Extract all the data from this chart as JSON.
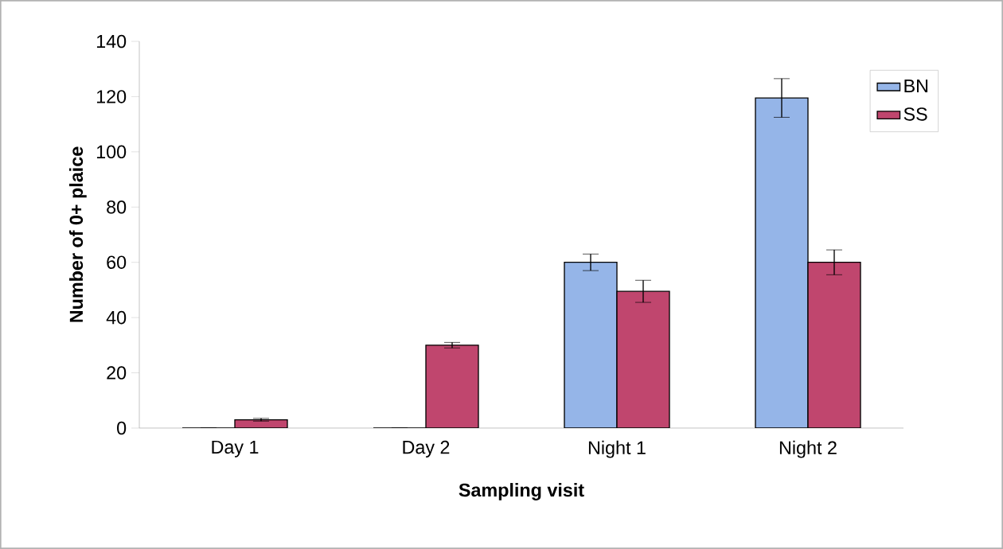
{
  "chart_data": {
    "type": "bar",
    "xlabel": "Sampling visit",
    "ylabel": "Number of 0+ plaice",
    "categories": [
      "Day 1",
      "Day 2",
      "Night 1",
      "Night 2"
    ],
    "series": [
      {
        "name": "BN",
        "color": "#95b5e8",
        "values": [
          0,
          0,
          60,
          119.5
        ],
        "errors": [
          null,
          null,
          3,
          7
        ]
      },
      {
        "name": "SS",
        "color": "#c0466e",
        "values": [
          3,
          30,
          49.5,
          60
        ],
        "errors": [
          0.5,
          1,
          4,
          4.5
        ]
      }
    ],
    "ylim": [
      0,
      140
    ],
    "yticks": [
      0,
      20,
      40,
      60,
      80,
      100,
      120,
      140
    ],
    "grid": false,
    "legend": "top right"
  }
}
